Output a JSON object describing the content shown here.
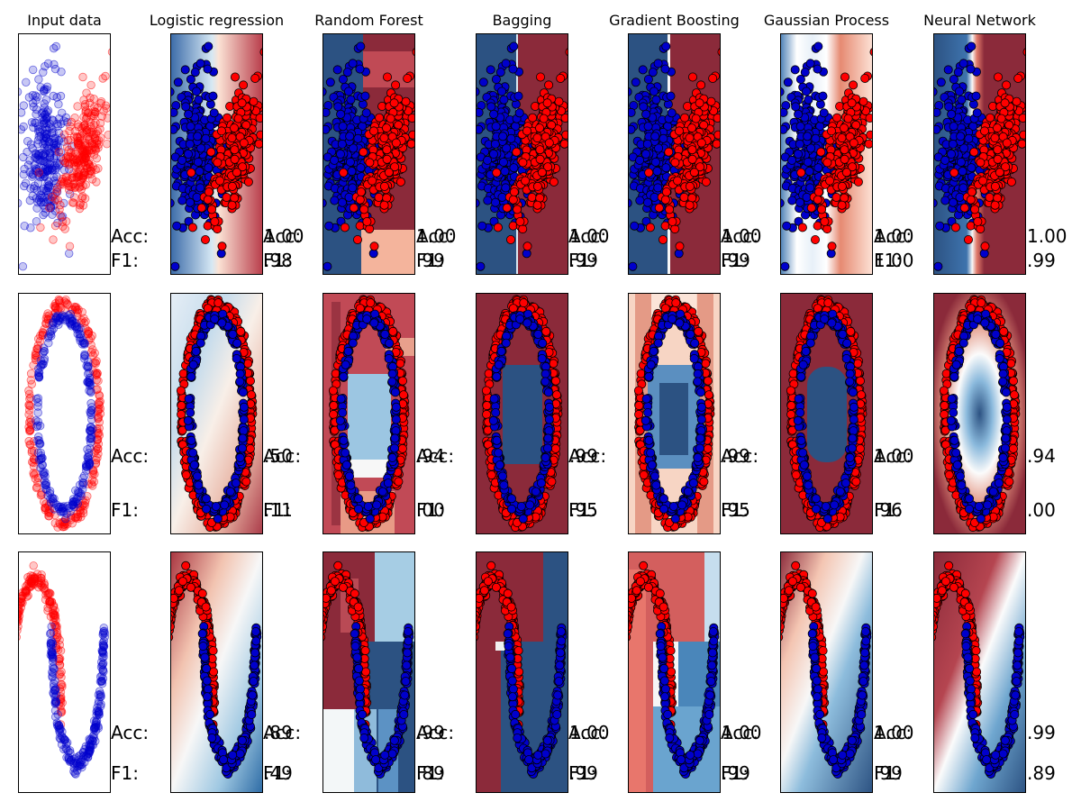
{
  "chart_data": {
    "type": "scatter",
    "columns": [
      "Input data",
      "Logistic regression",
      "Random Forest",
      "Bagging",
      "Gradient Boosting",
      "Gaussian Process",
      "Neural Network"
    ],
    "labels": {
      "acc": "Acc:",
      "f1": "F1:"
    },
    "colors": {
      "class_0": "#0000cc",
      "class_1": "#ff0000",
      "boundary_blue": "#2c5282",
      "boundary_red": "#8b2a3a"
    },
    "rows": [
      {
        "dataset": "blobs",
        "x_range": [
          -0.22,
          0.22
        ],
        "y_range": [
          -2.8,
          2.8
        ],
        "acc": [
          "1.00",
          "1.00",
          "1.00",
          "1.00",
          "1.00",
          "1.00"
        ],
        "f1": [
          ".98",
          ".99",
          ".99",
          ".99",
          "1.00",
          ".99"
        ]
      },
      {
        "dataset": "circles",
        "x_range": [
          -1.1,
          1.1
        ],
        "y_range": [
          -1.1,
          1.1
        ],
        "acc": [
          ".50",
          ".94",
          ".99",
          ".99",
          "1.00",
          ".94"
        ],
        "f1": [
          ".11",
          ".00",
          ".95",
          ".95",
          ".96",
          ".00"
        ]
      },
      {
        "dataset": "moons",
        "x_range": [
          -1.1,
          2.1
        ],
        "y_range": [
          -0.6,
          1.1
        ],
        "acc": [
          ".89",
          ".99",
          "1.00",
          "1.00",
          "1.00",
          ".99"
        ],
        "f1": [
          ".49",
          ".89",
          ".99",
          ".99",
          ".99",
          ".89"
        ]
      }
    ]
  }
}
